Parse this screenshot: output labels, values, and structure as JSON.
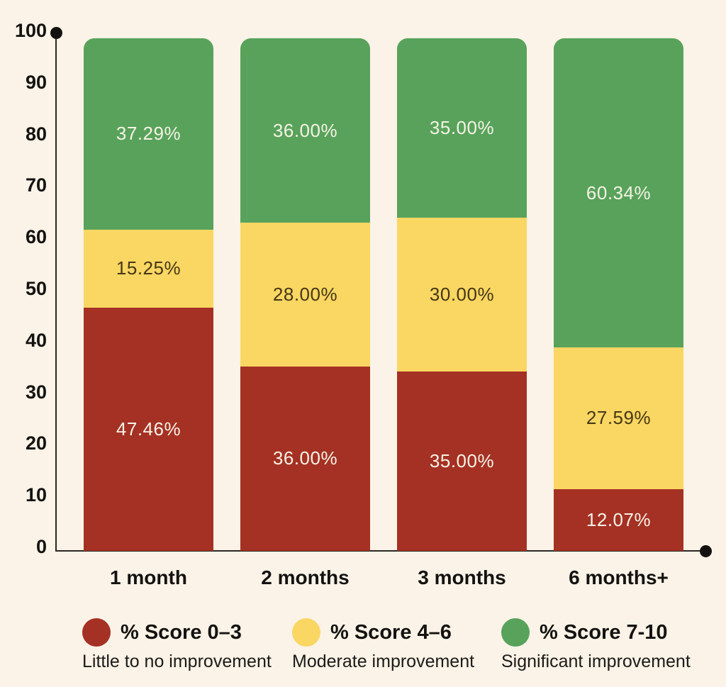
{
  "page": {
    "background_color": "#FBF3E7",
    "axis_color": "#2B2724",
    "text_color": "#141210"
  },
  "chart_data": {
    "type": "bar",
    "stacked": true,
    "title": "",
    "xlabel": "",
    "ylabel": "",
    "categories": [
      "1 month",
      "2 months",
      "3 months",
      "6 months+"
    ],
    "series": [
      {
        "name": "% Score 0–3",
        "subtitle": "Little to no improvement",
        "color": "#A43123",
        "label_color": "#F8F3E7",
        "values": [
          47.46,
          36.0,
          35.0,
          12.07
        ],
        "labels": [
          "47.46%",
          "36.00%",
          "35.00%",
          "12.07%"
        ]
      },
      {
        "name": "% Score 4–6",
        "subtitle": "Moderate improvement",
        "color": "#FAD663",
        "label_color": "#463714",
        "values": [
          15.25,
          28.0,
          30.0,
          27.59
        ],
        "labels": [
          "15.25%",
          "28.00%",
          "30.00%",
          "27.59%"
        ]
      },
      {
        "name": "% Score 7-10",
        "subtitle": "Significant improvement",
        "color": "#58A25B",
        "label_color": "#F5F3E4",
        "values": [
          37.29,
          36.0,
          35.0,
          60.34
        ],
        "labels": [
          "37.29%",
          "36.00%",
          "35.00%",
          "60.34%"
        ]
      }
    ],
    "y_axis": {
      "ticks": [
        0,
        10,
        20,
        30,
        40,
        50,
        60,
        70,
        80,
        90,
        100
      ],
      "ylim": [
        0,
        100
      ]
    },
    "grid": false,
    "legend_position": "bottom"
  }
}
